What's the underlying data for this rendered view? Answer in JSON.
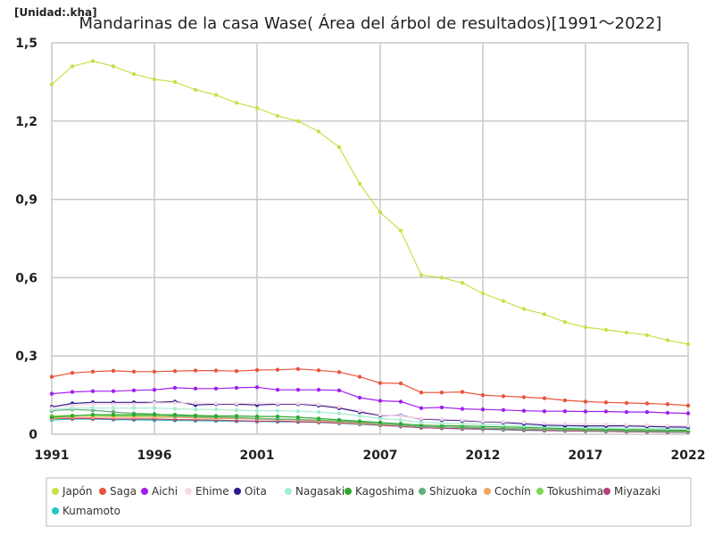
{
  "chart_data": {
    "type": "line",
    "title": "Mandarinas de la casa Wase( Área del árbol de resultados)[1991～2022]",
    "unit_label": "[Unidad:.kha]",
    "xlabel": "",
    "ylabel": "",
    "xlim": [
      1991,
      2022
    ],
    "ylim": [
      0,
      1.5
    ],
    "x_ticks": [
      1991,
      1996,
      2001,
      2007,
      2012,
      2017,
      2022
    ],
    "y_ticks": [
      0,
      0.3,
      0.6,
      0.9,
      1.2,
      1.5
    ],
    "y_tick_labels": [
      "0",
      "0,3",
      "0,6",
      "0,9",
      "1,2",
      "1,5"
    ],
    "grid": true,
    "legend_position": "bottom",
    "x": [
      1991,
      1992,
      1993,
      1994,
      1995,
      1996,
      1997,
      1998,
      1999,
      2000,
      2001,
      2002,
      2003,
      2004,
      2005,
      2006,
      2007,
      2008,
      2009,
      2010,
      2011,
      2012,
      2013,
      2014,
      2015,
      2016,
      2017,
      2018,
      2019,
      2020,
      2021,
      2022
    ],
    "series": [
      {
        "name": "Japón",
        "color": "#c4e24a",
        "values": [
          1.34,
          1.41,
          1.43,
          1.41,
          1.38,
          1.36,
          1.35,
          1.32,
          1.3,
          1.27,
          1.25,
          1.22,
          1.2,
          1.16,
          1.1,
          0.96,
          0.85,
          0.78,
          0.61,
          0.6,
          0.58,
          0.54,
          0.51,
          0.48,
          0.46,
          0.43,
          0.41,
          0.4,
          0.39,
          0.38,
          0.36,
          0.345
        ]
      },
      {
        "name": "Saga",
        "color": "#e8553a",
        "values": [
          0.22,
          0.235,
          0.24,
          0.243,
          0.24,
          0.24,
          0.242,
          0.244,
          0.244,
          0.242,
          0.246,
          0.247,
          0.25,
          0.245,
          0.238,
          0.22,
          0.196,
          0.195,
          0.16,
          0.16,
          0.162,
          0.15,
          0.146,
          0.142,
          0.138,
          0.13,
          0.125,
          0.122,
          0.12,
          0.118,
          0.115,
          0.11
        ]
      },
      {
        "name": "Aichi",
        "color": "#a020f0",
        "values": [
          0.155,
          0.162,
          0.165,
          0.165,
          0.168,
          0.17,
          0.178,
          0.175,
          0.175,
          0.178,
          0.18,
          0.17,
          0.17,
          0.17,
          0.168,
          0.14,
          0.128,
          0.125,
          0.1,
          0.103,
          0.097,
          0.095,
          0.093,
          0.09,
          0.088,
          0.088,
          0.087,
          0.087,
          0.085,
          0.085,
          0.082,
          0.08
        ]
      },
      {
        "name": "Ehime",
        "color": "#f4d9e8",
        "values": [
          0.1,
          0.11,
          0.115,
          0.115,
          0.115,
          0.12,
          0.12,
          0.12,
          0.118,
          0.118,
          0.12,
          0.118,
          0.118,
          0.114,
          0.105,
          0.09,
          0.075,
          0.07,
          0.06,
          0.058,
          0.055,
          0.05,
          0.048,
          0.045,
          0.042,
          0.04,
          0.04,
          0.038,
          0.036,
          0.035,
          0.033,
          0.032
        ]
      },
      {
        "name": "Oita",
        "color": "#2e1a8a",
        "values": [
          0.105,
          0.118,
          0.122,
          0.122,
          0.122,
          0.122,
          0.125,
          0.112,
          0.115,
          0.115,
          0.112,
          0.115,
          0.115,
          0.11,
          0.1,
          0.085,
          0.072,
          0.072,
          0.058,
          0.055,
          0.052,
          0.048,
          0.045,
          0.04,
          0.035,
          0.033,
          0.032,
          0.032,
          0.032,
          0.03,
          0.028,
          0.027
        ]
      },
      {
        "name": "Nagasaki",
        "color": "#a8ecd2",
        "values": [
          0.095,
          0.1,
          0.1,
          0.1,
          0.1,
          0.1,
          0.098,
          0.095,
          0.095,
          0.092,
          0.09,
          0.09,
          0.088,
          0.085,
          0.08,
          0.07,
          0.06,
          0.055,
          0.045,
          0.043,
          0.04,
          0.038,
          0.035,
          0.032,
          0.03,
          0.028,
          0.026,
          0.025,
          0.024,
          0.023,
          0.022,
          0.02
        ]
      },
      {
        "name": "Kagoshima",
        "color": "#2ea82e",
        "values": [
          0.065,
          0.07,
          0.075,
          0.075,
          0.075,
          0.075,
          0.075,
          0.072,
          0.07,
          0.07,
          0.068,
          0.068,
          0.065,
          0.06,
          0.055,
          0.05,
          0.045,
          0.04,
          0.035,
          0.033,
          0.032,
          0.03,
          0.028,
          0.026,
          0.024,
          0.022,
          0.02,
          0.019,
          0.018,
          0.017,
          0.016,
          0.015
        ]
      },
      {
        "name": "Shizuoka",
        "color": "#5fae7a",
        "values": [
          0.09,
          0.095,
          0.092,
          0.085,
          0.08,
          0.078,
          0.07,
          0.068,
          0.066,
          0.064,
          0.06,
          0.058,
          0.056,
          0.054,
          0.05,
          0.046,
          0.04,
          0.036,
          0.03,
          0.028,
          0.026,
          0.024,
          0.022,
          0.02,
          0.018,
          0.017,
          0.016,
          0.015,
          0.014,
          0.013,
          0.012,
          0.012
        ]
      },
      {
        "name": "Cochín",
        "color": "#f4a460",
        "values": [
          0.06,
          0.065,
          0.065,
          0.065,
          0.065,
          0.065,
          0.065,
          0.062,
          0.06,
          0.06,
          0.058,
          0.056,
          0.054,
          0.05,
          0.046,
          0.042,
          0.038,
          0.034,
          0.03,
          0.028,
          0.026,
          0.024,
          0.022,
          0.02,
          0.018,
          0.017,
          0.016,
          0.015,
          0.014,
          0.013,
          0.012,
          0.011
        ]
      },
      {
        "name": "Tokushima",
        "color": "#7fd651",
        "values": [
          0.07,
          0.072,
          0.072,
          0.07,
          0.07,
          0.07,
          0.068,
          0.066,
          0.064,
          0.062,
          0.06,
          0.058,
          0.056,
          0.052,
          0.048,
          0.044,
          0.04,
          0.035,
          0.03,
          0.028,
          0.026,
          0.024,
          0.022,
          0.02,
          0.018,
          0.016,
          0.015,
          0.014,
          0.013,
          0.012,
          0.011,
          0.01
        ]
      },
      {
        "name": "Miyazaki",
        "color": "#b0407a",
        "values": [
          0.06,
          0.06,
          0.06,
          0.058,
          0.058,
          0.058,
          0.056,
          0.055,
          0.054,
          0.052,
          0.05,
          0.05,
          0.048,
          0.046,
          0.043,
          0.04,
          0.035,
          0.03,
          0.025,
          0.023,
          0.021,
          0.02,
          0.018,
          0.016,
          0.014,
          0.013,
          0.012,
          0.011,
          0.01,
          0.009,
          0.008,
          0.008
        ]
      },
      {
        "name": "Kumamoto",
        "color": "#22c6c6",
        "values": [
          0.055,
          0.058,
          0.058,
          0.056,
          0.055,
          0.054,
          0.053,
          0.052,
          0.051,
          0.05,
          0.049,
          0.048,
          0.047,
          0.045,
          0.042,
          0.038,
          0.034,
          0.03,
          0.025,
          0.023,
          0.021,
          0.019,
          0.017,
          0.015,
          0.014,
          0.013,
          0.012,
          0.011,
          0.01,
          0.009,
          0.008,
          0.007
        ]
      }
    ]
  }
}
